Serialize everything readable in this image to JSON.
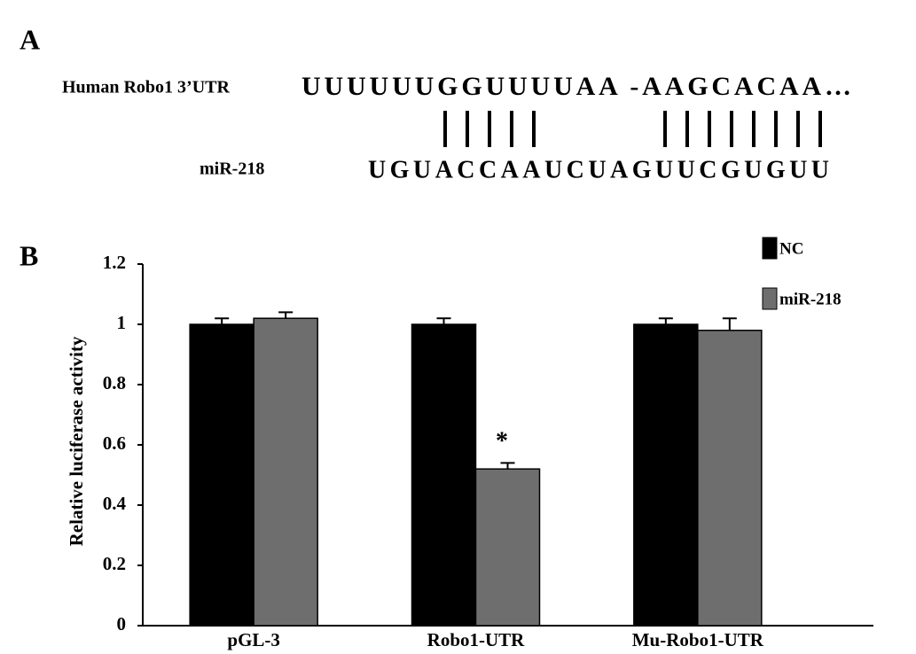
{
  "panel_a": {
    "label": "A",
    "target_name": "Human Robo1  3’UTR",
    "target_sequence": "UUUUUUGGUUUUAA -AAGCACAA…",
    "mirna_name": "miR-218",
    "mirna_sequence": "UGUACCAAUCUAGUUCGUGUU"
  },
  "chart_data": {
    "type": "bar",
    "panel_label": "B",
    "y_label": "Relative luciferase activity",
    "categories": [
      "pGL-3",
      "Robo1-UTR",
      "Mu-Robo1-UTR"
    ],
    "series": [
      {
        "name": "NC",
        "color": "#000000",
        "values": [
          1,
          1,
          1
        ],
        "errors": [
          0.02,
          0.02,
          0.02
        ]
      },
      {
        "name": "miR-218",
        "color": "#6e6e6e",
        "values": [
          1.02,
          0.52,
          0.98
        ],
        "errors": [
          0.02,
          0.02,
          0.04
        ]
      }
    ],
    "annotation": "*",
    "ylim": [
      0,
      1.2
    ],
    "yticks": [
      0,
      0.2,
      0.4,
      0.6,
      0.8,
      1,
      1.2
    ],
    "grid": false,
    "legend": "upper right"
  }
}
